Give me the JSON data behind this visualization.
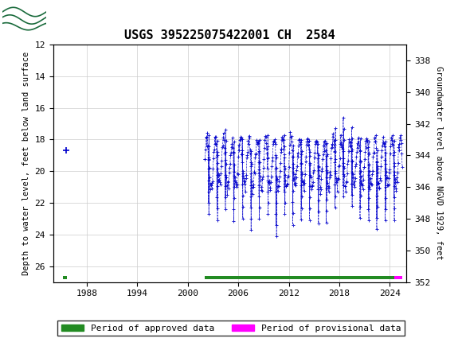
{
  "title": "USGS 395225075422001 CH  2584",
  "ylabel_left": "Depth to water level, feet below land surface",
  "ylabel_right": "Groundwater level above NGVD 1929, feet",
  "ylim_left": [
    12,
    27
  ],
  "ylim_right": [
    352,
    337
  ],
  "yticks_left": [
    12,
    14,
    16,
    18,
    20,
    22,
    24,
    26
  ],
  "yticks_right": [
    352,
    350,
    348,
    346,
    344,
    342,
    340,
    338
  ],
  "xticks": [
    1988,
    1994,
    2000,
    2006,
    2012,
    2018,
    2024
  ],
  "xlim": [
    1984,
    2026
  ],
  "header_color": "#1a6b3c",
  "data_color": "#0000cc",
  "approved_color": "#228B22",
  "provisional_color": "#ff00ff",
  "background_color": "#ffffff",
  "grid_color": "#cccccc",
  "single_point_x": 1985.5,
  "single_point_y": 18.7,
  "approved_bar_start": 2002.0,
  "approved_bar_end": 2024.5,
  "provisional_bar_start": 2024.5,
  "provisional_bar_end": 2025.5,
  "approved_bar2_start": 1985.2,
  "approved_bar2_end": 1985.6,
  "bar_y": 26.72,
  "bar_height": 0.22,
  "legend_approved": "Period of approved data",
  "legend_provisional": "Period of provisional data",
  "fig_width": 5.8,
  "fig_height": 4.3,
  "dpi": 100
}
